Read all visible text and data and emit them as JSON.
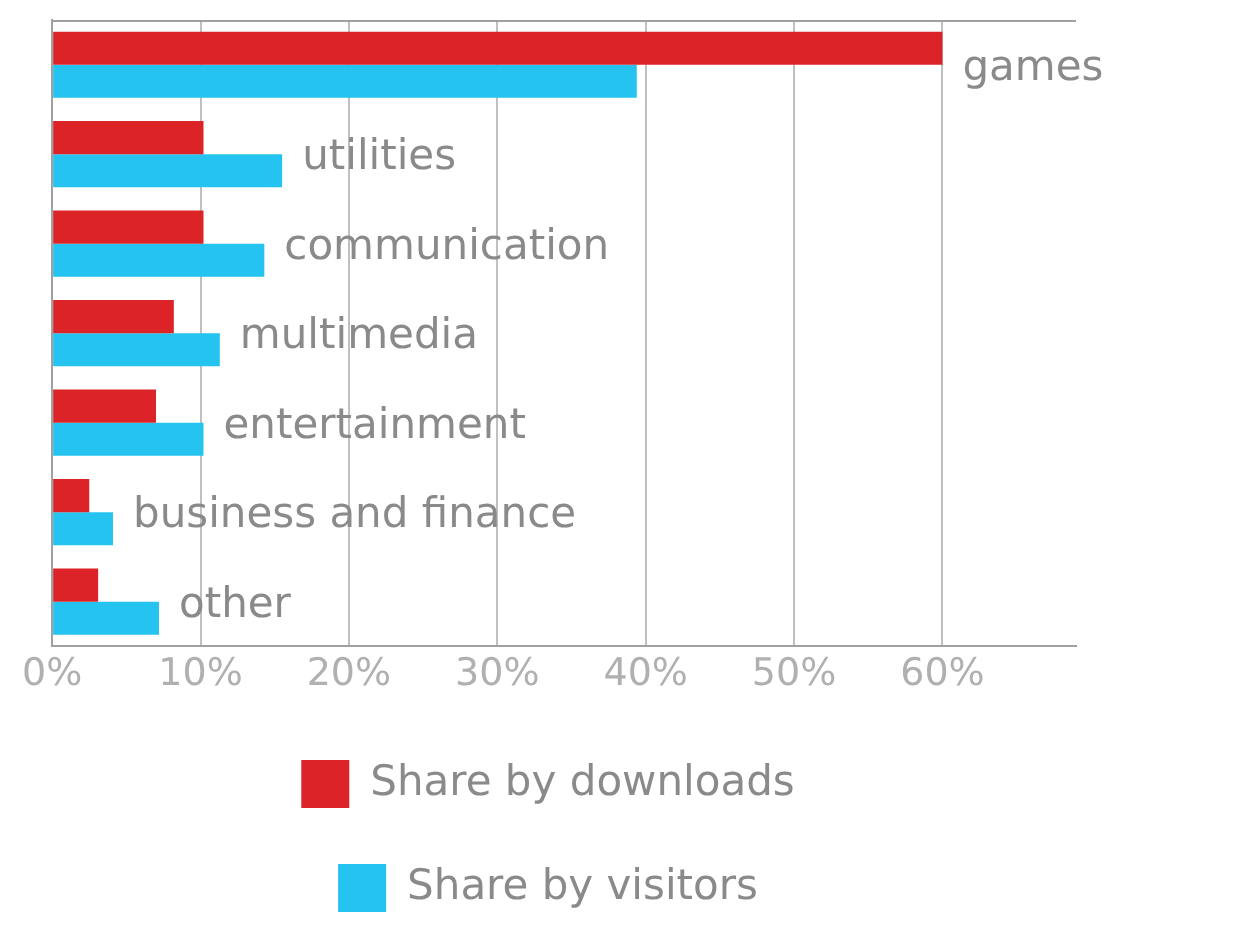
{
  "chart_data": {
    "type": "bar",
    "orientation": "horizontal",
    "categories": [
      "games",
      "utilities",
      "communication",
      "multimedia",
      "entertainment",
      "business and finance",
      "other"
    ],
    "series": [
      {
        "name": "Share by downloads",
        "color": "#dc2428",
        "values": [
          60,
          10.2,
          10.2,
          8.2,
          7,
          2.5,
          3.1
        ]
      },
      {
        "name": "Share by visitors",
        "color": "#24c3f0",
        "values": [
          39.4,
          15.5,
          14.3,
          11.3,
          10.2,
          4.1,
          7.2
        ]
      }
    ],
    "xlim": [
      0,
      69
    ],
    "xticks": [
      {
        "value": 0,
        "label": "0%"
      },
      {
        "value": 10,
        "label": "10%"
      },
      {
        "value": 20,
        "label": "20%"
      },
      {
        "value": 30,
        "label": "30%"
      },
      {
        "value": 40,
        "label": "40%"
      },
      {
        "value": 50,
        "label": "50%"
      },
      {
        "value": 60,
        "label": "60%"
      }
    ],
    "grid": "x",
    "legend": "bottom"
  }
}
